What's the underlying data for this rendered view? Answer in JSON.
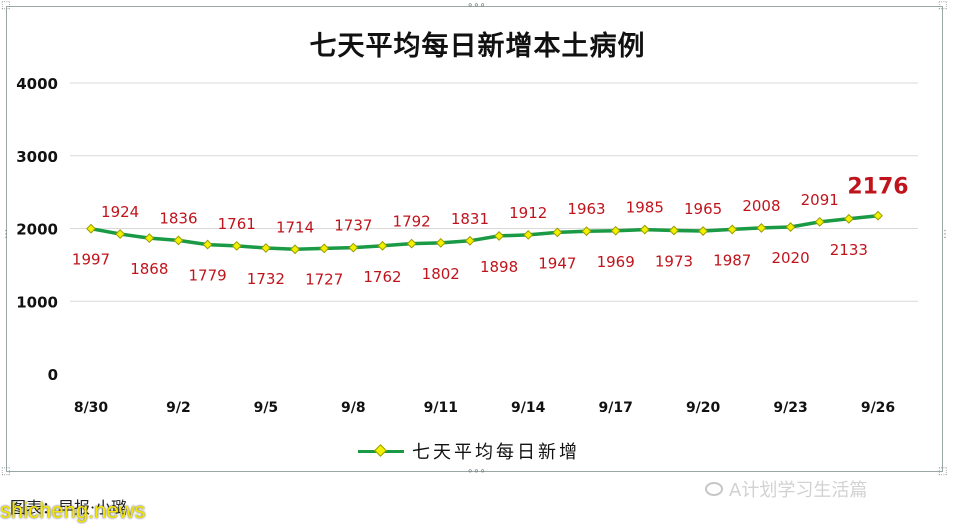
{
  "chart_data": {
    "type": "line",
    "title": "七天平均每日新增本土病例",
    "x": [
      "8/30",
      "8/31",
      "9/1",
      "9/2",
      "9/3",
      "9/4",
      "9/5",
      "9/6",
      "9/7",
      "9/8",
      "9/9",
      "9/10",
      "9/11",
      "9/12",
      "9/13",
      "9/14",
      "9/15",
      "9/16",
      "9/17",
      "9/18",
      "9/19",
      "9/20",
      "9/21",
      "9/22",
      "9/23",
      "9/24",
      "9/25",
      "9/26"
    ],
    "x_tick_labels": [
      "8/30",
      "9/2",
      "9/5",
      "9/8",
      "9/11",
      "9/14",
      "9/17",
      "9/20",
      "9/23",
      "9/26"
    ],
    "y_ticks": [
      "0",
      "1000",
      "2000",
      "3000",
      "4000"
    ],
    "ylim": [
      0,
      4000
    ],
    "series": [
      {
        "name": "七天平均每日新增",
        "values": [
          1997,
          1924,
          1868,
          1836,
          1779,
          1761,
          1732,
          1714,
          1727,
          1737,
          1762,
          1792,
          1802,
          1831,
          1898,
          1912,
          1947,
          1963,
          1969,
          1985,
          1973,
          1965,
          1987,
          2008,
          2020,
          2091,
          2133,
          2176
        ]
      }
    ],
    "grid": true,
    "legend_position": "bottom",
    "colors": {
      "line": "#1a9a45",
      "marker_fill": "#f2f200",
      "marker_stroke": "#9a9a00",
      "data_label": "#c0141c",
      "grid": "#d9d9d9"
    }
  },
  "footer": {
    "source": "图表：早报·小璐",
    "watermark": "shicheng.news",
    "account": "A计划学习生活篇"
  }
}
